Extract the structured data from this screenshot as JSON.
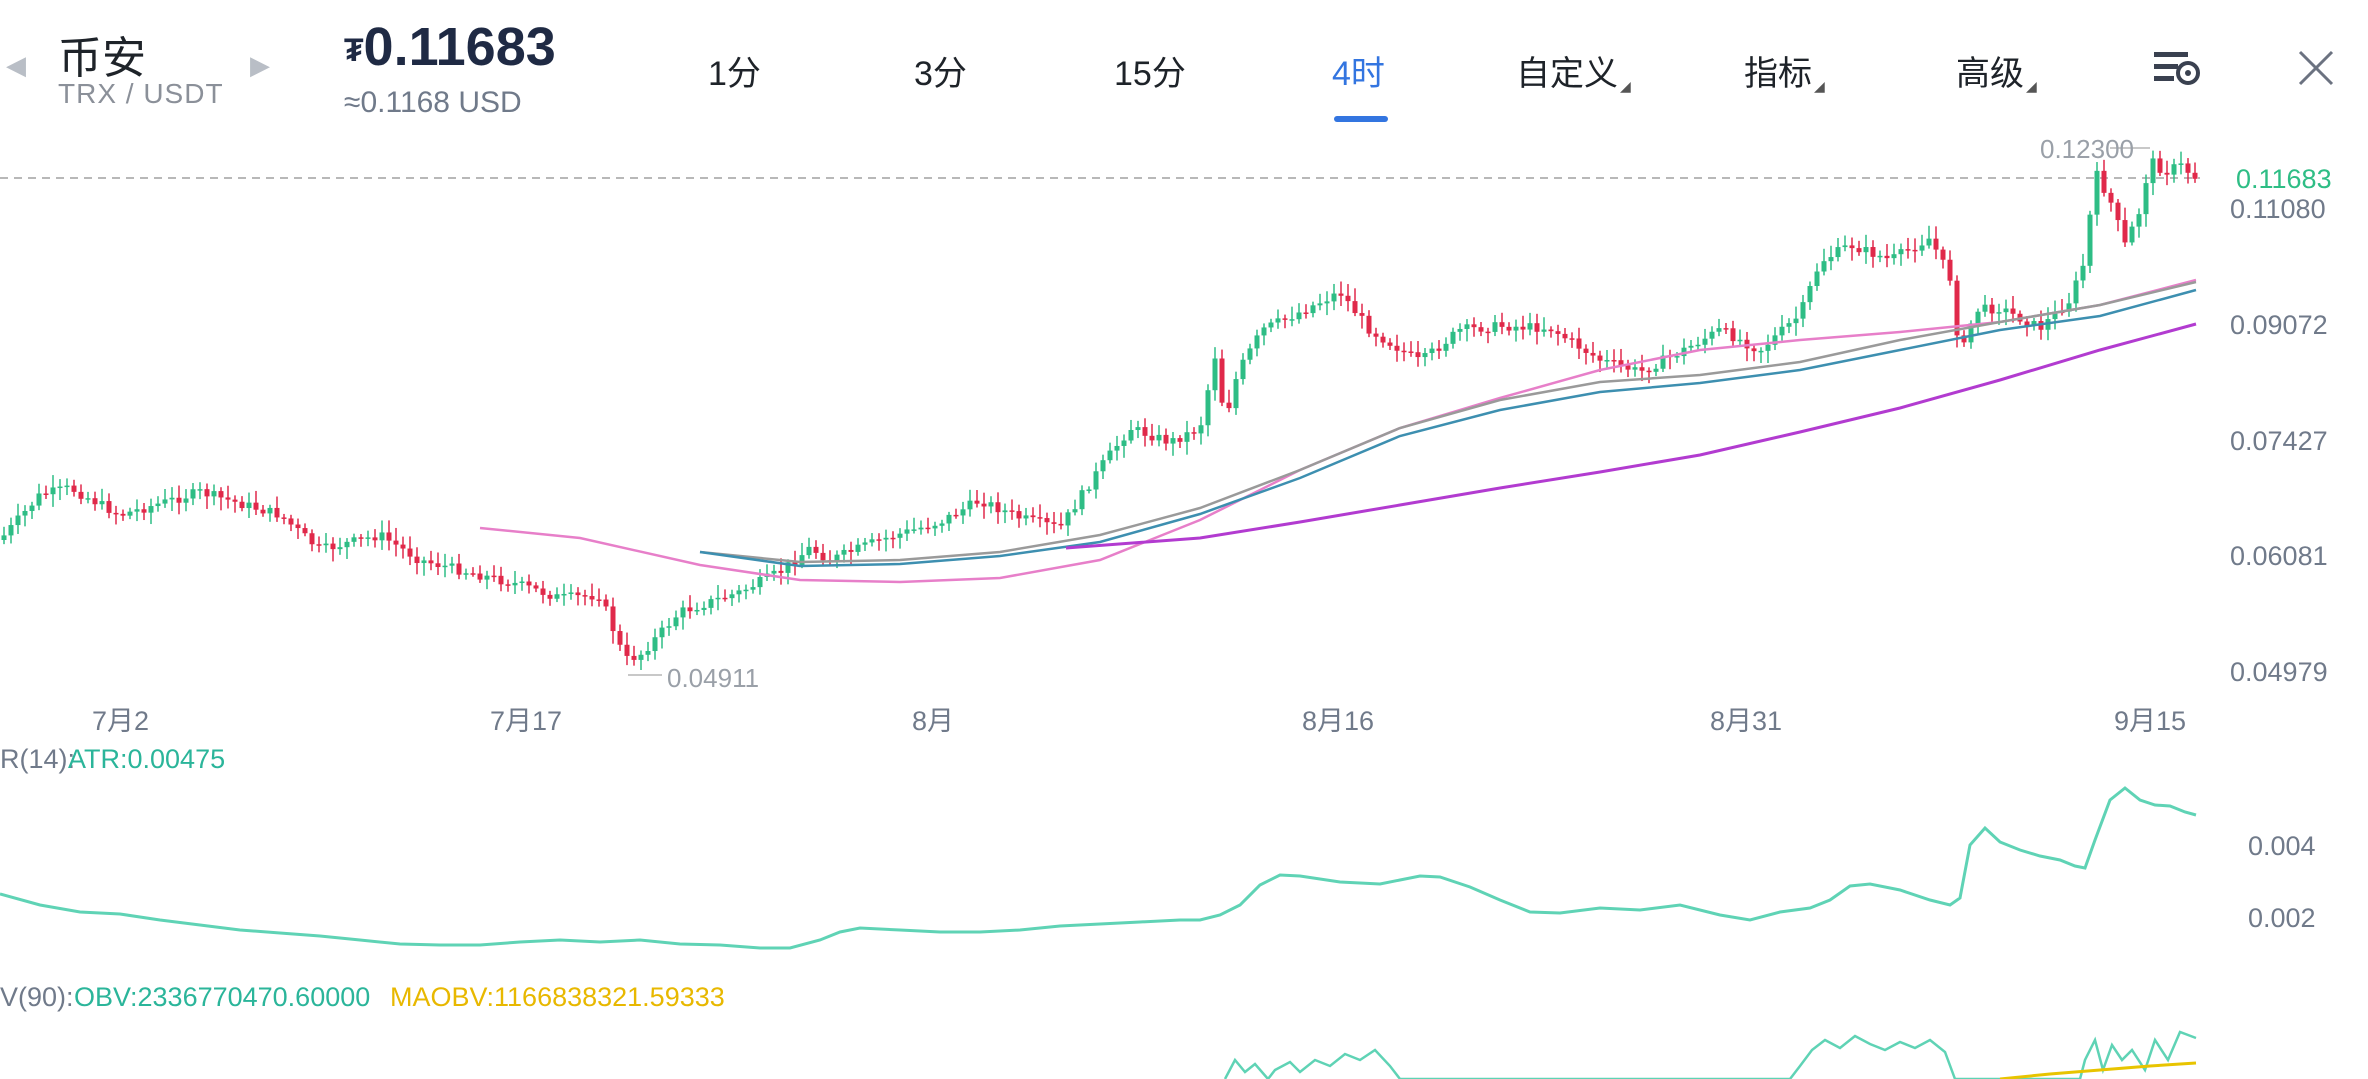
{
  "header": {
    "exchange": "币安",
    "pair": "TRX / USDT",
    "currency_symbol": "₮",
    "price": "0.11683",
    "price_usd": "≈0.1168 USD",
    "prev_icon": "chevron-left-icon",
    "next_icon": "chevron-right-icon",
    "settings_icon": "chart-settings-icon",
    "close_icon": "close-icon"
  },
  "tabs": [
    {
      "label": "1分",
      "active": false
    },
    {
      "label": "3分",
      "active": false
    },
    {
      "label": "15分",
      "active": false
    },
    {
      "label": "4时",
      "active": true
    },
    {
      "label": "自定义",
      "active": false,
      "dropdown": true
    },
    {
      "label": "指标",
      "active": false,
      "dropdown": true
    },
    {
      "label": "高级",
      "active": false,
      "dropdown": true
    }
  ],
  "main_chart": {
    "current_price_label": "0.11683",
    "high_label": "0.12300",
    "low_label": "0.04911",
    "y_ticks": [
      "0.11080",
      "0.09072",
      "0.07427",
      "0.06081",
      "0.04979"
    ],
    "x_ticks": [
      "7月2",
      "7月17",
      "8月",
      "8月16",
      "8月31",
      "9月15"
    ]
  },
  "atr": {
    "param_label": "R(14):",
    "value_label": "ATR:0.00475",
    "y_ticks": [
      "0.004",
      "0.002"
    ]
  },
  "obv": {
    "param_label": "V(90):",
    "obv_label": "OBV:2336770470.60000",
    "maobv_label": "MAOBV:1166838321.59333"
  },
  "colors": {
    "accent": "#3375e0",
    "up": "#2ebd85",
    "down": "#e0294a",
    "price_line": "#2ebd85",
    "ma_pink": "#e77fc9",
    "ma_purple": "#b23bd0",
    "ma_teal": "#3d8fb0",
    "ma_gray": "#9a9a9a",
    "atr_line": "#5fd3b5",
    "obv_label": "#2bb59a",
    "maobv_label": "#e8b800",
    "maobv_line": "#e8c400"
  }
}
